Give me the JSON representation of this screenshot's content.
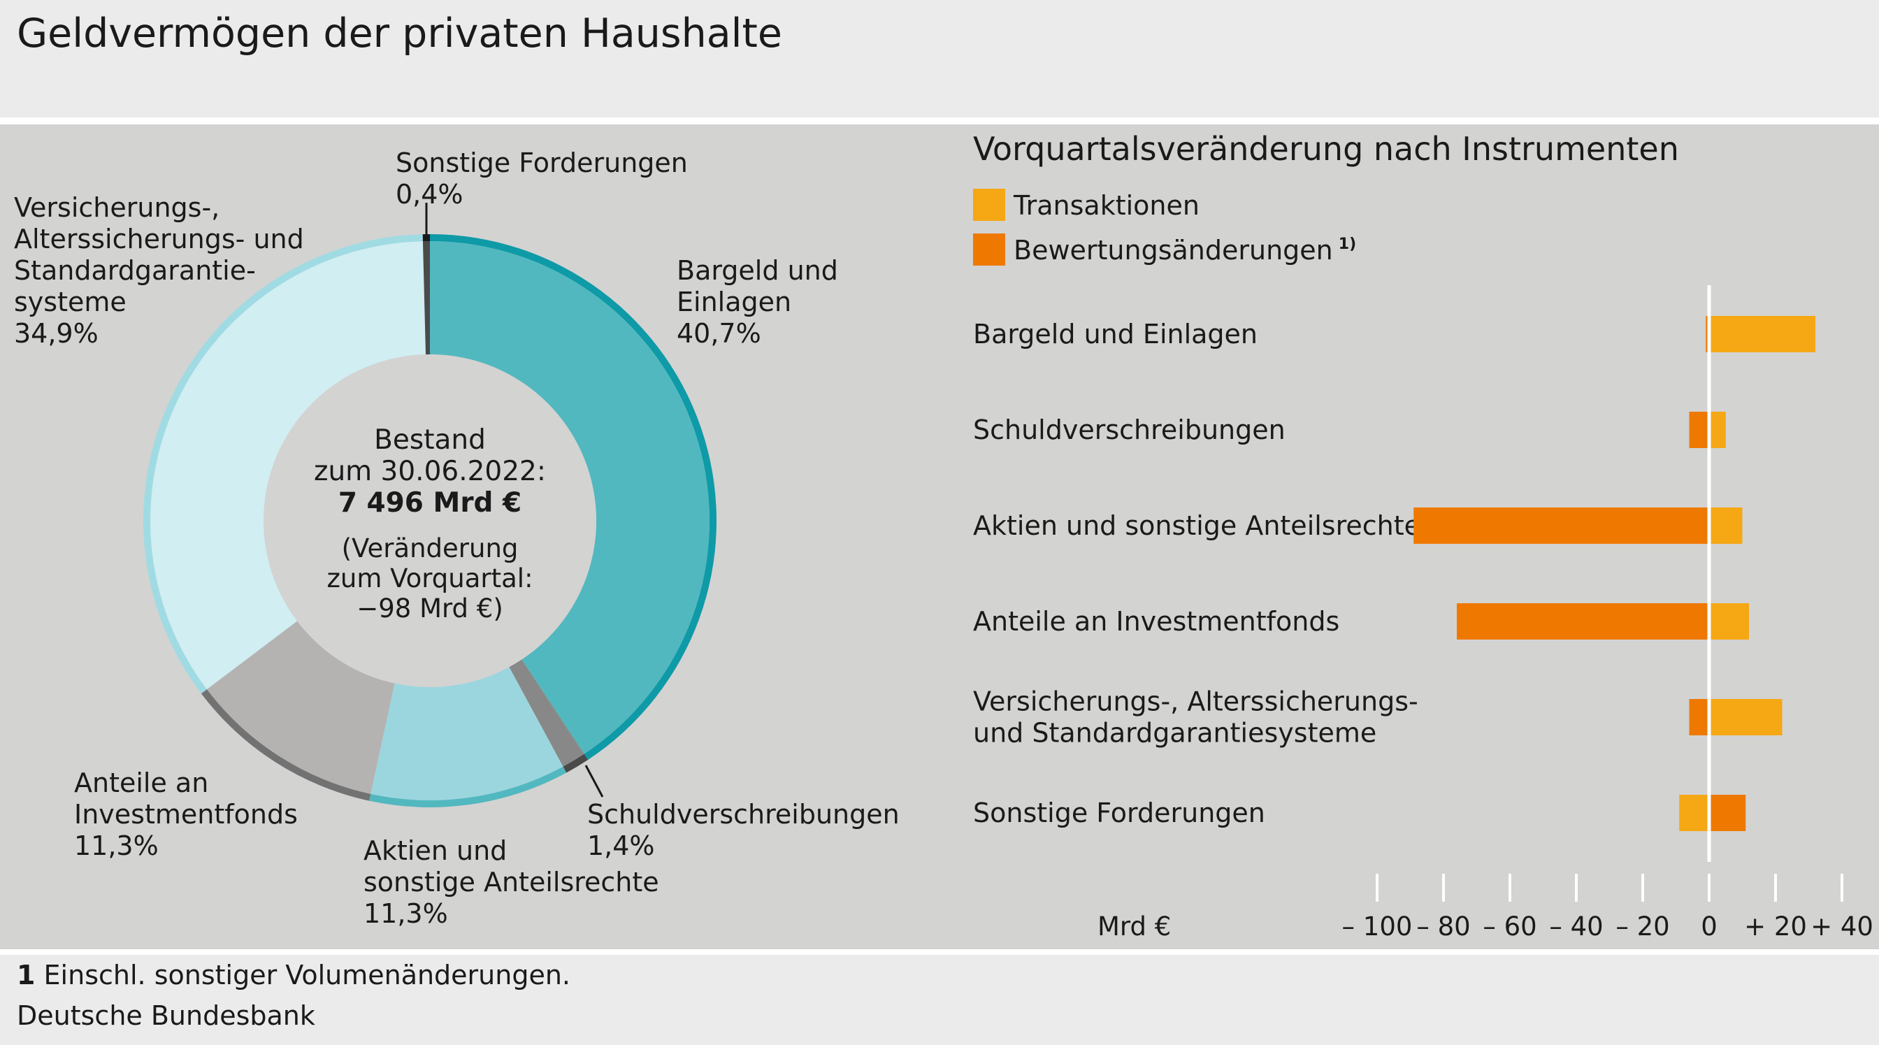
{
  "title": "Geldvermögen der privaten Haushalte",
  "footnote": {
    "number": "1",
    "text": "Einschl. sonstiger Volumenänderungen."
  },
  "source": "Deutsche Bundesbank",
  "colors": {
    "panel": "#d3d3d2",
    "transaktionen": "#f5a714",
    "bewertung": "#ef7900",
    "zero_line": "#ffffff"
  },
  "chart_data": [
    {
      "type": "pie",
      "variant": "donut",
      "center": {
        "lines": [
          "Bestand",
          "zum 30.06.2022:",
          "7 496 Mrd €"
        ],
        "sub_lines": [
          "(Veränderung",
          "zum Vorquartal:",
          "−98 Mrd €)"
        ]
      },
      "slices": [
        {
          "label_lines": [
            "Bargeld und",
            "Einlagen"
          ],
          "value": 40.7,
          "value_label": "40,7%",
          "fill": "#52b8bf",
          "rim": "#0e9aa7"
        },
        {
          "label_lines": [
            "Schuldverschreibungen"
          ],
          "value": 1.4,
          "value_label": "1,4%",
          "fill": "#898888",
          "rim": "#4a4a4a"
        },
        {
          "label_lines": [
            "Aktien und",
            "sonstige Anteilsrechte"
          ],
          "value": 11.3,
          "value_label": "11,3%",
          "fill": "#9bd6df",
          "rim": "#52b8bf"
        },
        {
          "label_lines": [
            "Anteile an",
            "Investmentfonds"
          ],
          "value": 11.3,
          "value_label": "11,3%",
          "fill": "#b4b3b2",
          "rim": "#727272"
        },
        {
          "label_lines": [
            "Versicherungs-,",
            "Alterssicherungs- und",
            "Standardgarantie-",
            "systeme"
          ],
          "value": 34.9,
          "value_label": "34,9%",
          "fill": "#d1eef2",
          "rim": "#a0dbe3"
        },
        {
          "label_lines": [
            "Sonstige Forderungen"
          ],
          "value": 0.4,
          "value_label": "0,4%",
          "fill": "#4a4a4a",
          "rim": "#1a1a1a"
        }
      ]
    },
    {
      "type": "bar",
      "orientation": "horizontal",
      "stacked": "diverging",
      "title": "Vorquartalsveränderung nach Instrumenten",
      "legend": [
        {
          "name": "Transaktionen",
          "color": "#f5a714"
        },
        {
          "name": "Bewertungsänderungen",
          "superscript": "1)",
          "color": "#ef7900"
        }
      ],
      "categories": [
        [
          "Bargeld und Einlagen"
        ],
        [
          "Schuldverschreibungen"
        ],
        [
          "Aktien und sonstige Anteilsrechte"
        ],
        [
          "Anteile an Investmentfonds"
        ],
        [
          "Versicherungs-, Alterssicherungs-",
          "und Standardgarantiesysteme"
        ],
        [
          "Sonstige Forderungen"
        ]
      ],
      "series": [
        {
          "name": "Transaktionen",
          "values": [
            32,
            5,
            10,
            12,
            22,
            -9
          ]
        },
        {
          "name": "Bewertungsänderungen",
          "values": [
            -1,
            -6,
            -89,
            -76,
            -6,
            11
          ]
        }
      ],
      "xlim": [
        -100,
        40
      ],
      "xticks": [
        -100,
        -80,
        -60,
        -40,
        -20,
        0,
        20,
        40
      ],
      "xtick_labels": [
        "– 100",
        "– 80",
        "– 60",
        "– 40",
        "– 20",
        "0",
        "+ 20",
        "+ 40"
      ],
      "unit_label": "Mrd €"
    }
  ]
}
